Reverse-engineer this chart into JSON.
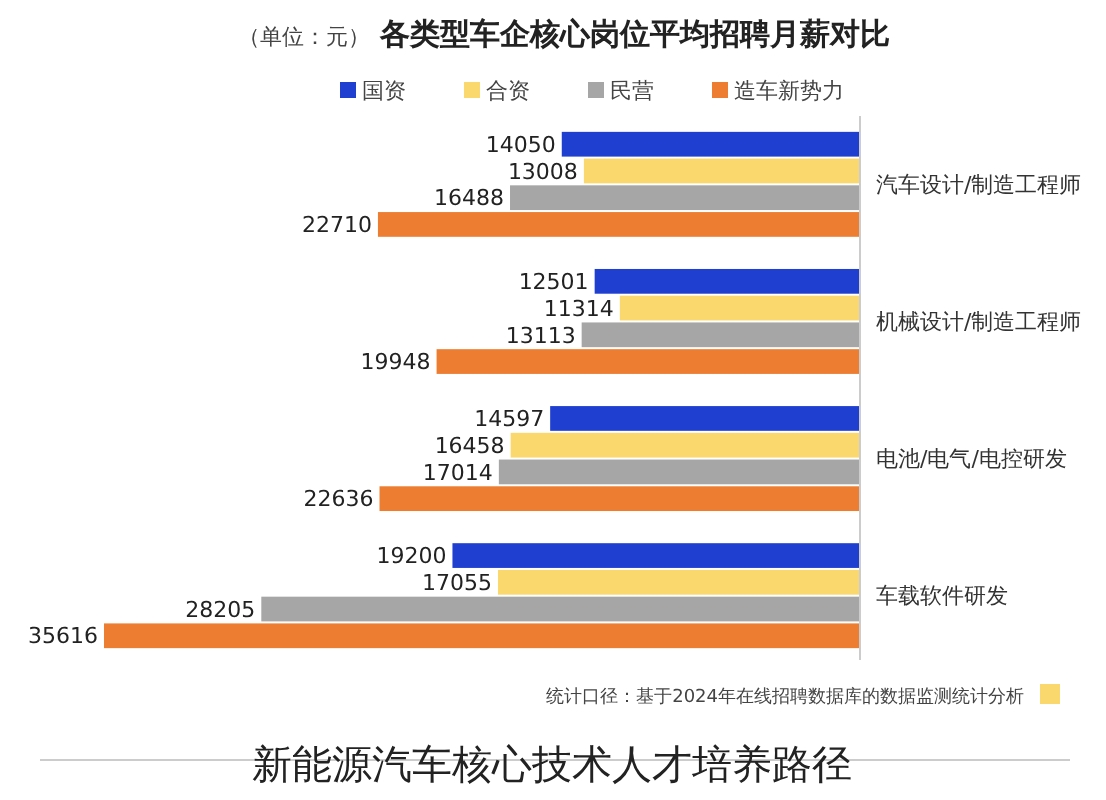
{
  "chart_data": {
    "type": "bar",
    "orientation": "horizontal",
    "title": "各类型车企核心岗位平均招聘月薪对比",
    "subtitle": "（单位：元）",
    "categories": [
      "汽车设计/制造工程师",
      "机械设计/制造工程师",
      "电池/电气/电控研发",
      "车载软件研发"
    ],
    "series": [
      {
        "name": "国资",
        "color": "#1f3fd0",
        "values": [
          14050,
          12501,
          14597,
          19200
        ]
      },
      {
        "name": "合资",
        "color": "#fad86e",
        "values": [
          13008,
          11314,
          16458,
          17055
        ]
      },
      {
        "name": "民营",
        "color": "#a6a6a6",
        "values": [
          16488,
          13113,
          17014,
          28205
        ]
      },
      {
        "name": "造车新势力",
        "color": "#ed7d31",
        "values": [
          22710,
          19948,
          22636,
          35616
        ]
      }
    ],
    "data_labels": true,
    "legend": "top",
    "tick_labels": "y",
    "annotations": [
      "统计口径：基于2024年在线招聘数据库的数据监测统计分析",
      "新能源汽车核心技术人才培养路径"
    ]
  }
}
